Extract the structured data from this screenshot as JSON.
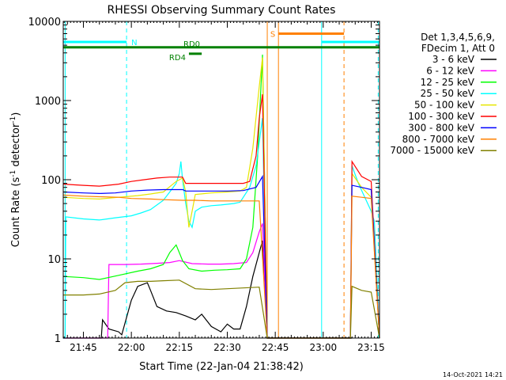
{
  "chart_data": {
    "type": "line",
    "title": "RHESSI Observing Summary Count Rates",
    "xlabel": "Start Time (22-Jan-04 21:38:42)",
    "ylabel_main": "Count Rate (s",
    "ylabel_sup1": "-1",
    "ylabel_mid": " detector",
    "ylabel_sup2": "-1",
    "ylabel_end": ")",
    "yscale": "log",
    "ylim": [
      1,
      10000
    ],
    "xlim_minutes_after_2100": [
      38.7,
      137.6
    ],
    "x_ticks": [
      {
        "minute": 45,
        "label": "21:45"
      },
      {
        "minute": 60,
        "label": "22:00"
      },
      {
        "minute": 75,
        "label": "22:15"
      },
      {
        "minute": 90,
        "label": "22:30"
      },
      {
        "minute": 105,
        "label": "22:45"
      },
      {
        "minute": 120,
        "label": "23:00"
      },
      {
        "minute": 135,
        "label": "23:15"
      }
    ],
    "y_ticks": [
      {
        "value": 1,
        "label": "1"
      },
      {
        "value": 10,
        "label": "10"
      },
      {
        "value": 100,
        "label": "100"
      },
      {
        "value": 1000,
        "label": "1000"
      },
      {
        "value": 10000,
        "label": "10000"
      }
    ],
    "legend_header": [
      "Det 1,3,4,5,6,9,",
      "FDecim 1, Att 0"
    ],
    "legend_position": "right",
    "series": [
      {
        "name": "3 - 6 keV",
        "color": "#000000",
        "points": [
          [
            38.7,
            1
          ],
          [
            50.6,
            1
          ],
          [
            51,
            1.7
          ],
          [
            53,
            1.3
          ],
          [
            56,
            1.2
          ],
          [
            57,
            1.1
          ],
          [
            60,
            3
          ],
          [
            62,
            4.5
          ],
          [
            65,
            5
          ],
          [
            66,
            4
          ],
          [
            68,
            2.5
          ],
          [
            71,
            2.2
          ],
          [
            74,
            2.1
          ],
          [
            77,
            1.9
          ],
          [
            80,
            1.7
          ],
          [
            82,
            2
          ],
          [
            85,
            1.4
          ],
          [
            88,
            1.2
          ],
          [
            90,
            1.5
          ],
          [
            92,
            1.3
          ],
          [
            94,
            1.3
          ],
          [
            96,
            2.5
          ],
          [
            98,
            6
          ],
          [
            100,
            12
          ],
          [
            101,
            17
          ],
          [
            102.5,
            1
          ],
          [
            128.5,
            1
          ],
          [
            129,
            1
          ]
        ]
      },
      {
        "name": "6 - 12 keV",
        "color": "#ff00ff",
        "points": [
          [
            38.7,
            1
          ],
          [
            52.6,
            1
          ],
          [
            53,
            8.5
          ],
          [
            58,
            8.5
          ],
          [
            63,
            8.6
          ],
          [
            68,
            8.8
          ],
          [
            72,
            9
          ],
          [
            75,
            9.5
          ],
          [
            79,
            8.7
          ],
          [
            84,
            8.6
          ],
          [
            88,
            8.6
          ],
          [
            92,
            8.7
          ],
          [
            96,
            9
          ],
          [
            98,
            12
          ],
          [
            100,
            22
          ],
          [
            101,
            28
          ],
          [
            102.5,
            1
          ],
          [
            128.5,
            1
          ],
          [
            129,
            1
          ]
        ]
      },
      {
        "name": "12 - 25 keV",
        "color": "#00ff00",
        "points": [
          [
            38.7,
            6
          ],
          [
            45,
            5.8
          ],
          [
            50,
            5.5
          ],
          [
            56,
            6.2
          ],
          [
            62,
            7
          ],
          [
            66,
            7.5
          ],
          [
            70,
            8.5
          ],
          [
            72,
            12
          ],
          [
            74,
            15
          ],
          [
            75,
            12
          ],
          [
            76,
            9.5
          ],
          [
            78,
            7.5
          ],
          [
            82,
            7
          ],
          [
            86,
            7.2
          ],
          [
            90,
            7.3
          ],
          [
            94,
            7.5
          ],
          [
            96,
            10
          ],
          [
            98,
            25
          ],
          [
            99.5,
            200
          ],
          [
            101,
            3800
          ],
          [
            102.5,
            1
          ],
          [
            128.5,
            1
          ],
          [
            129,
            1
          ]
        ]
      },
      {
        "name": "25 - 50 keV",
        "color": "#00ffff",
        "points": [
          [
            38.7,
            1
          ],
          [
            39.3,
            1
          ],
          [
            39.5,
            34
          ],
          [
            45,
            32
          ],
          [
            50,
            31
          ],
          [
            55,
            33
          ],
          [
            60,
            35
          ],
          [
            63,
            38
          ],
          [
            66,
            42
          ],
          [
            68,
            48
          ],
          [
            70,
            55
          ],
          [
            72,
            70
          ],
          [
            74,
            90
          ],
          [
            75,
            120
          ],
          [
            75.5,
            170
          ],
          [
            76,
            100
          ],
          [
            77,
            50
          ],
          [
            78,
            30
          ],
          [
            79,
            25
          ],
          [
            80,
            40
          ],
          [
            82,
            45
          ],
          [
            85,
            47
          ],
          [
            88,
            48
          ],
          [
            92,
            50
          ],
          [
            94,
            52
          ],
          [
            95,
            60
          ],
          [
            97,
            80
          ],
          [
            99,
            150
          ],
          [
            101,
            600
          ],
          [
            102.5,
            1
          ],
          [
            128.5,
            1
          ],
          [
            129,
            150
          ],
          [
            131,
            90
          ],
          [
            133,
            60
          ],
          [
            135,
            40
          ],
          [
            136,
            30
          ],
          [
            137.6,
            1
          ]
        ]
      },
      {
        "name": "50 - 100 keV",
        "color": "#e6e600",
        "points": [
          [
            38.7,
            60
          ],
          [
            45,
            58
          ],
          [
            50,
            57
          ],
          [
            56,
            60
          ],
          [
            62,
            63
          ],
          [
            66,
            66
          ],
          [
            70,
            70
          ],
          [
            74,
            95
          ],
          [
            76,
            105
          ],
          [
            77,
            70
          ],
          [
            78,
            25
          ],
          [
            79,
            40
          ],
          [
            80,
            65
          ],
          [
            85,
            68
          ],
          [
            90,
            70
          ],
          [
            94,
            72
          ],
          [
            96,
            80
          ],
          [
            98,
            250
          ],
          [
            100,
            1500
          ],
          [
            101,
            3500
          ],
          [
            102.5,
            1
          ],
          [
            128.5,
            1
          ],
          [
            129,
            120
          ],
          [
            132,
            80
          ],
          [
            135,
            60
          ],
          [
            137.6,
            1
          ]
        ]
      },
      {
        "name": "100 - 300 keV",
        "color": "#ff0000",
        "points": [
          [
            38.7,
            88
          ],
          [
            45,
            85
          ],
          [
            50,
            83
          ],
          [
            56,
            88
          ],
          [
            60,
            95
          ],
          [
            64,
            100
          ],
          [
            68,
            105
          ],
          [
            72,
            108
          ],
          [
            76,
            108
          ],
          [
            77,
            90
          ],
          [
            80,
            90
          ],
          [
            85,
            90
          ],
          [
            90,
            90
          ],
          [
            95,
            90
          ],
          [
            97,
            95
          ],
          [
            99,
            200
          ],
          [
            100,
            600
          ],
          [
            101,
            1200
          ],
          [
            102.5,
            1
          ],
          [
            128.5,
            1
          ],
          [
            129,
            170
          ],
          [
            132,
            110
          ],
          [
            135,
            95
          ],
          [
            137.6,
            1
          ]
        ]
      },
      {
        "name": "300 - 800 keV",
        "color": "#0000ff",
        "points": [
          [
            38.7,
            70
          ],
          [
            45,
            68
          ],
          [
            50,
            67
          ],
          [
            55,
            68
          ],
          [
            60,
            72
          ],
          [
            65,
            74
          ],
          [
            70,
            75
          ],
          [
            76,
            75
          ],
          [
            77,
            72
          ],
          [
            80,
            72
          ],
          [
            85,
            72
          ],
          [
            90,
            72
          ],
          [
            95,
            73
          ],
          [
            99,
            80
          ],
          [
            101,
            110
          ],
          [
            102.5,
            1
          ],
          [
            128.5,
            1
          ],
          [
            129,
            85
          ],
          [
            132,
            80
          ],
          [
            135,
            75
          ],
          [
            137.6,
            1
          ]
        ]
      },
      {
        "name": "800 - 7000 keV",
        "color": "#ff8000",
        "points": [
          [
            38.7,
            64
          ],
          [
            45,
            62
          ],
          [
            50,
            61
          ],
          [
            56,
            60
          ],
          [
            60,
            58
          ],
          [
            66,
            57
          ],
          [
            70,
            56
          ],
          [
            76,
            55
          ],
          [
            80,
            55
          ],
          [
            85,
            54
          ],
          [
            90,
            54
          ],
          [
            95,
            54
          ],
          [
            100,
            54
          ],
          [
            102.5,
            1
          ],
          [
            128.5,
            1
          ],
          [
            129,
            62
          ],
          [
            132,
            60
          ],
          [
            135,
            58
          ],
          [
            137.6,
            1
          ]
        ]
      },
      {
        "name": "7000 - 15000 keV",
        "color": "#808000",
        "points": [
          [
            38.7,
            3.5
          ],
          [
            45,
            3.5
          ],
          [
            50,
            3.6
          ],
          [
            55,
            4
          ],
          [
            58,
            5
          ],
          [
            62,
            5.2
          ],
          [
            66,
            5.2
          ],
          [
            70,
            5.3
          ],
          [
            75,
            5.4
          ],
          [
            80,
            4.2
          ],
          [
            85,
            4.1
          ],
          [
            90,
            4.2
          ],
          [
            95,
            4.3
          ],
          [
            100,
            4.4
          ],
          [
            102.5,
            1
          ],
          [
            128.5,
            1
          ],
          [
            129,
            4.5
          ],
          [
            132,
            4
          ],
          [
            135,
            3.8
          ],
          [
            137.6,
            1
          ]
        ]
      }
    ],
    "flags": [
      {
        "label": "N",
        "color": "#00ffff",
        "value": 5500,
        "segments": [
          [
            38.7,
            58.5
          ],
          [
            119.5,
            137.6
          ]
        ]
      },
      {
        "label": "S",
        "color": "#ff8000",
        "value": 7000,
        "segments": [
          [
            106,
            126.5
          ]
        ]
      },
      {
        "label": "RD0",
        "color": "#008000",
        "value": 4700,
        "segments": [
          [
            38.7,
            137.6
          ]
        ]
      },
      {
        "label": "RD4",
        "color": "#008000",
        "value": 3900,
        "segments": [
          [
            78,
            82
          ]
        ]
      }
    ],
    "markers": [
      {
        "minute": 39.3,
        "color": "#00ffff",
        "style": "solid"
      },
      {
        "minute": 58.5,
        "color": "#00ffff",
        "style": "dashed"
      },
      {
        "minute": 102.5,
        "color": "#ff8000",
        "style": "solid"
      },
      {
        "minute": 106,
        "color": "#ff8000",
        "style": "solid"
      },
      {
        "minute": 119.5,
        "color": "#00ffff",
        "style": "solid"
      },
      {
        "minute": 126.5,
        "color": "#ff8000",
        "style": "dashed"
      },
      {
        "minute": 137.2,
        "color": "#00ffff",
        "style": "dashed"
      }
    ]
  },
  "footer_date": "14-Oct-2021 14:21"
}
